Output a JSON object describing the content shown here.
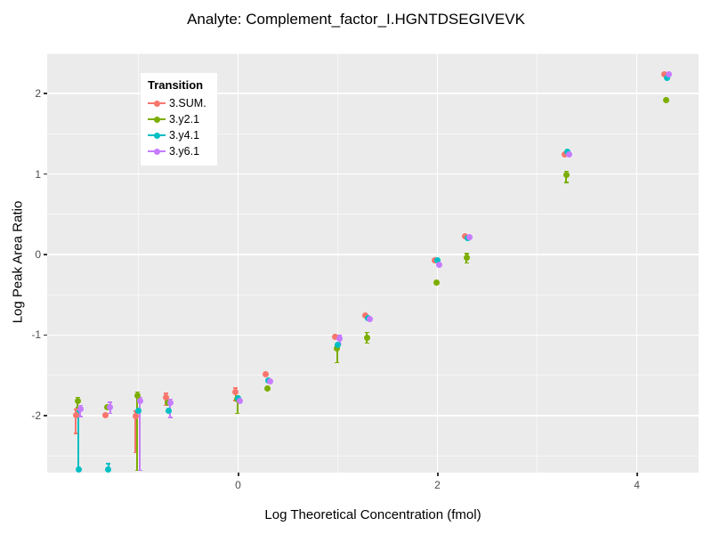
{
  "chart_data": {
    "type": "scatter",
    "title": "Analyte: Complement_factor_I.HGNTDSEGIVEVK",
    "xlabel": "Log Theoretical Concentration (fmol)",
    "ylabel": "Log Peak Area Ratio",
    "legend_title": "Transition",
    "legend_position": "inside-top-left",
    "panel_background": "#EBEBEB",
    "gridline_color": "#FFFFFF",
    "xlim": [
      -1.915,
      4.62
    ],
    "ylim": [
      -2.71,
      2.5
    ],
    "x_ticks": [
      {
        "v": 0,
        "label": "0"
      },
      {
        "v": 2,
        "label": "2"
      },
      {
        "v": 4,
        "label": "4"
      }
    ],
    "x_minor": [
      -1,
      1,
      3
    ],
    "y_ticks": [
      {
        "v": 2,
        "label": "2"
      },
      {
        "v": 1,
        "label": "1"
      },
      {
        "v": 0,
        "label": "0"
      },
      {
        "v": -1,
        "label": "-1"
      },
      {
        "v": -2,
        "label": "-2"
      }
    ],
    "y_minor": [
      2.5,
      1.5,
      0.5,
      -0.5,
      -1.5,
      -2.5
    ],
    "series": [
      {
        "name": "3.SUM.",
        "color": "#F8766D",
        "dx": -3,
        "points": [
          {
            "x": -1.6,
            "y": -2.0,
            "lo": -2.22,
            "hi": -1.93
          },
          {
            "x": -1.3,
            "y": -2.0
          },
          {
            "x": -1.0,
            "y": -2.01,
            "lo": -2.46,
            "hi": -1.95
          },
          {
            "x": -0.7,
            "y": -1.78,
            "lo": -1.87,
            "hi": -1.73
          },
          {
            "x": 0,
            "y": -1.71,
            "lo": -1.81,
            "hi": -1.66
          },
          {
            "x": 0.3,
            "y": -1.49
          },
          {
            "x": 1,
            "y": -1.02
          },
          {
            "x": 1.3,
            "y": -0.76
          },
          {
            "x": 2,
            "y": -0.07
          },
          {
            "x": 2.3,
            "y": 0.23
          },
          {
            "x": 3.3,
            "y": 1.25
          },
          {
            "x": 4.3,
            "y": 2.24
          }
        ]
      },
      {
        "name": "3.y2.1",
        "color": "#7CAE00",
        "dx": -1,
        "points": [
          {
            "x": -1.6,
            "y": -1.82,
            "lo": -1.9,
            "hi": -1.78
          },
          {
            "x": -1.3,
            "y": -1.9
          },
          {
            "x": -1.0,
            "y": -1.75,
            "lo": -2.68,
            "hi": -1.71
          },
          {
            "x": -0.7,
            "y": -1.84
          },
          {
            "x": 0,
            "y": -1.8,
            "lo": -1.97,
            "hi": -1.76
          },
          {
            "x": 0.3,
            "y": -1.67
          },
          {
            "x": 1,
            "y": -1.17,
            "lo": -1.34,
            "hi": -1.12
          },
          {
            "x": 1.3,
            "y": -1.03,
            "lo": -1.1,
            "hi": -0.97
          },
          {
            "x": 2,
            "y": -0.35
          },
          {
            "x": 2.3,
            "y": -0.04,
            "lo": -0.1,
            "hi": 0.01
          },
          {
            "x": 3.3,
            "y": 0.99,
            "lo": 0.9,
            "hi": 1.03
          },
          {
            "x": 4.3,
            "y": 1.92
          }
        ]
      },
      {
        "name": "3.y4.1",
        "color": "#00BFC4",
        "dx": 0,
        "points": [
          {
            "x": -1.6,
            "y": -2.67,
            "lo": -2.71,
            "hi": -1.95
          },
          {
            "x": -1.3,
            "y": -2.67,
            "lo": -2.71,
            "hi": -2.6
          },
          {
            "x": -1.0,
            "y": -1.94
          },
          {
            "x": -0.7,
            "y": -1.94
          },
          {
            "x": 0,
            "y": -1.79
          },
          {
            "x": 0.3,
            "y": -1.56
          },
          {
            "x": 1,
            "y": -1.12
          },
          {
            "x": 1.3,
            "y": -0.79
          },
          {
            "x": 2,
            "y": -0.07
          },
          {
            "x": 2.3,
            "y": 0.21
          },
          {
            "x": 3.3,
            "y": 1.28
          },
          {
            "x": 4.3,
            "y": 2.2
          }
        ]
      },
      {
        "name": "3.y6.1",
        "color": "#C77CFF",
        "dx": 2,
        "points": [
          {
            "x": -1.6,
            "y": -1.92,
            "lo": -2.01,
            "hi": -1.88
          },
          {
            "x": -1.3,
            "y": -1.9,
            "lo": -1.97,
            "hi": -1.84
          },
          {
            "x": -1.0,
            "y": -1.82,
            "lo": -2.68,
            "hi": -1.78
          },
          {
            "x": -0.7,
            "y": -1.84,
            "lo": -2.02,
            "hi": -1.8
          },
          {
            "x": 0,
            "y": -1.82
          },
          {
            "x": 0.3,
            "y": -1.58
          },
          {
            "x": 1,
            "y": -1.05,
            "lo": -1.11,
            "hi": -1.01
          },
          {
            "x": 1.3,
            "y": -0.8
          },
          {
            "x": 2,
            "y": -0.13
          },
          {
            "x": 2.3,
            "y": 0.22
          },
          {
            "x": 3.3,
            "y": 1.24
          },
          {
            "x": 4.3,
            "y": 2.24
          }
        ]
      }
    ]
  }
}
